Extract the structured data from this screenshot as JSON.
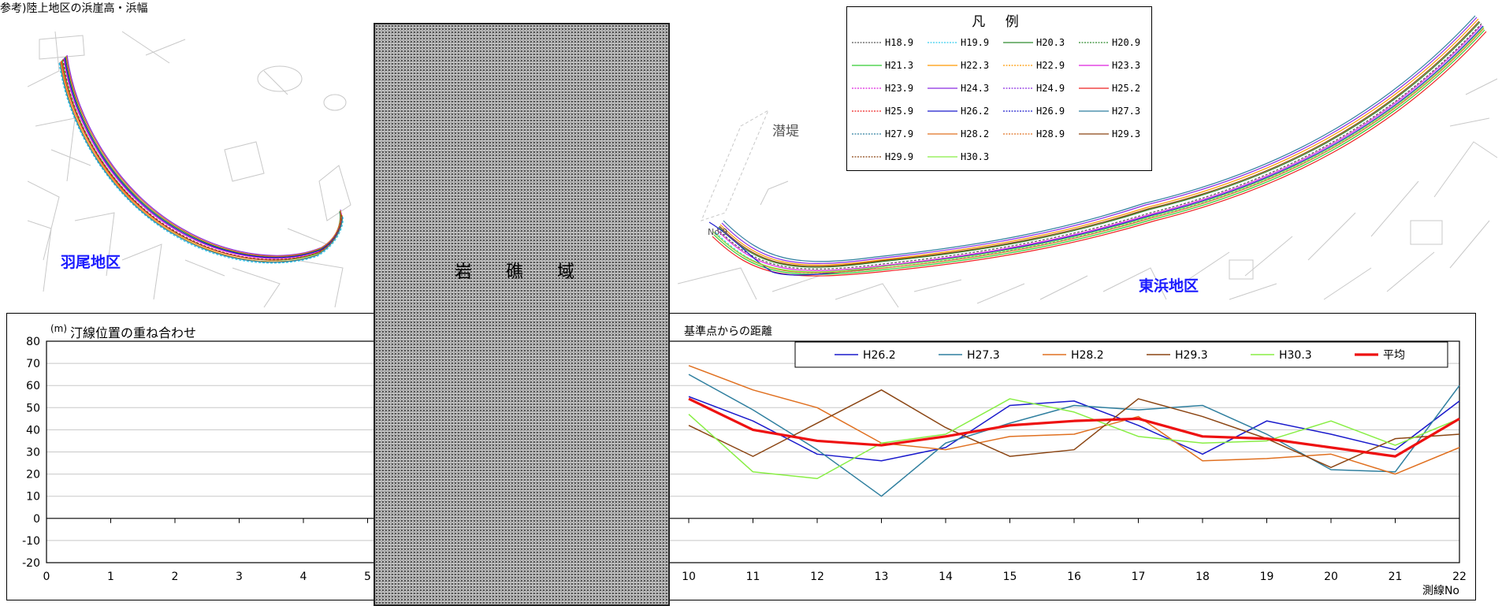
{
  "page_title": "参考)陸上地区の浜崖高・浜幅",
  "map_left": {
    "area_label": "羽尾地区"
  },
  "map_right": {
    "area_label": "東浜地区",
    "structure_label": "潜堤",
    "point_label": "No.9"
  },
  "rock_area_label": "岩 礁 域",
  "legend": {
    "title": "凡 例",
    "items": [
      {
        "name": "H18.9",
        "color": "#555555",
        "dash": true
      },
      {
        "name": "H19.9",
        "color": "#33ccee",
        "dash": true
      },
      {
        "name": "H20.3",
        "color": "#2e8b2e",
        "dash": false
      },
      {
        "name": "H20.9",
        "color": "#2e8b2e",
        "dash": true
      },
      {
        "name": "H21.3",
        "color": "#33cc33",
        "dash": false
      },
      {
        "name": "H22.3",
        "color": "#ff9900",
        "dash": false
      },
      {
        "name": "H22.9",
        "color": "#ff9900",
        "dash": true
      },
      {
        "name": "H23.3",
        "color": "#dd22dd",
        "dash": false
      },
      {
        "name": "H23.9",
        "color": "#dd22dd",
        "dash": true
      },
      {
        "name": "H24.3",
        "color": "#8a2be2",
        "dash": false
      },
      {
        "name": "H24.9",
        "color": "#8a2be2",
        "dash": true
      },
      {
        "name": "H25.2",
        "color": "#ee2222",
        "dash": false
      },
      {
        "name": "H25.9",
        "color": "#ee2222",
        "dash": true
      },
      {
        "name": "H26.2",
        "color": "#1a1acc",
        "dash": false
      },
      {
        "name": "H26.9",
        "color": "#1a1acc",
        "dash": true
      },
      {
        "name": "H27.3",
        "color": "#2f7f9f",
        "dash": false
      },
      {
        "name": "H27.9",
        "color": "#2f7f9f",
        "dash": true
      },
      {
        "name": "H28.2",
        "color": "#e07020",
        "dash": false
      },
      {
        "name": "H28.9",
        "color": "#e07020",
        "dash": true
      },
      {
        "name": "H29.3",
        "color": "#8b4513",
        "dash": false
      },
      {
        "name": "H29.9",
        "color": "#8b4513",
        "dash": true
      },
      {
        "name": "H30.3",
        "color": "#88ee44",
        "dash": false
      }
    ]
  },
  "chart_data": {
    "type": "line",
    "title": "汀線位置の重ね合わせ",
    "subtitle": "基準点からの距離",
    "ylabel": "(m)",
    "xlabel": "測線No",
    "ylim": [
      -20,
      80
    ],
    "yticks": [
      -20,
      -10,
      0,
      10,
      20,
      30,
      40,
      50,
      60,
      70,
      80
    ],
    "xlim": [
      0,
      22
    ],
    "xticks": [
      0,
      1,
      2,
      3,
      4,
      5,
      10,
      11,
      12,
      13,
      14,
      15,
      16,
      17,
      18,
      19,
      20,
      21,
      22
    ],
    "x": [
      10,
      11,
      12,
      13,
      14,
      15,
      16,
      17,
      18,
      19,
      20,
      21,
      22
    ],
    "grid": true,
    "legend_position": "top-right",
    "series": [
      {
        "name": "H26.2",
        "color": "#1a1acc",
        "values": [
          55,
          44,
          29,
          26,
          32,
          51,
          53,
          42,
          29,
          44,
          38,
          31,
          53
        ]
      },
      {
        "name": "H27.3",
        "color": "#2f7f9f",
        "values": [
          65,
          49,
          31,
          10,
          34,
          43,
          51,
          49,
          51,
          38,
          22,
          21,
          60
        ]
      },
      {
        "name": "H28.2",
        "color": "#e07020",
        "values": [
          69,
          58,
          50,
          34,
          31,
          37,
          38,
          46,
          26,
          27,
          29,
          20,
          32
        ]
      },
      {
        "name": "H29.3",
        "color": "#8b4513",
        "values": [
          42,
          28,
          43,
          58,
          41,
          28,
          31,
          54,
          46,
          36,
          23,
          36,
          38
        ]
      },
      {
        "name": "H30.3",
        "color": "#88ee44",
        "values": [
          47,
          21,
          18,
          34,
          38,
          54,
          48,
          37,
          34,
          35,
          44,
          33,
          45
        ]
      },
      {
        "name": "平均",
        "color": "#ee1111",
        "values": [
          54,
          40,
          35,
          33,
          37,
          42,
          44,
          45,
          37,
          36,
          32,
          28,
          45
        ]
      }
    ]
  }
}
